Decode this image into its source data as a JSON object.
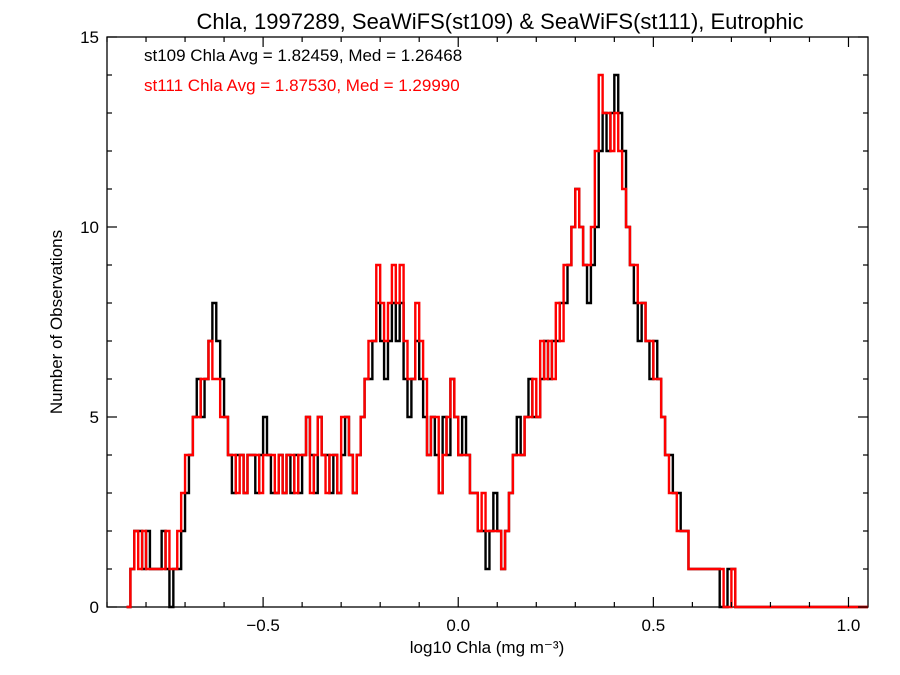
{
  "chart_data": {
    "type": "histogram",
    "title": "Chla, 1997289, SeaWiFS(st109) & SeaWiFS(st111), Eutrophic",
    "xlabel": "log10 Chla (mg m⁻³)",
    "ylabel": "Number of Observations",
    "xlim": [
      -0.9,
      1.05
    ],
    "ylim": [
      0,
      15
    ],
    "xticks": [
      -0.5,
      0.0,
      0.5,
      1.0
    ],
    "xtick_labels": [
      "−0.5",
      "0.0",
      "0.5",
      "1.0"
    ],
    "yticks": [
      0,
      5,
      10,
      15
    ],
    "ytick_labels": [
      "0",
      "5",
      "10",
      "15"
    ],
    "grid": false,
    "bin_start": -0.85,
    "bin_width": 0.01,
    "stats": [
      {
        "text": "st109 Chla Avg = 1.82459, Med = 1.26468",
        "color": "#000000"
      },
      {
        "text": "st111 Chla Avg = 1.87530, Med = 1.29990",
        "color": "#ff0000"
      }
    ],
    "series": [
      {
        "name": "st109",
        "color": "#000000",
        "values": [
          0,
          1,
          2,
          2,
          1,
          2,
          1,
          1,
          1,
          2,
          1,
          0,
          1,
          1,
          2,
          3,
          4,
          5,
          6,
          5,
          6,
          7,
          8,
          7,
          6,
          5,
          4,
          3,
          4,
          4,
          3,
          4,
          4,
          3,
          4,
          5,
          4,
          3,
          3,
          4,
          3,
          4,
          3,
          4,
          3,
          4,
          5,
          4,
          3,
          5,
          4,
          4,
          3,
          4,
          3,
          4,
          5,
          4,
          3,
          4,
          5,
          6,
          6,
          7,
          8,
          7,
          6,
          7,
          8,
          7,
          8,
          6,
          5,
          6,
          7,
          6,
          5,
          4,
          5,
          4,
          3,
          5,
          4,
          6,
          5,
          4,
          5,
          4,
          3,
          3,
          2,
          2,
          1,
          2,
          3,
          2,
          1,
          2,
          3,
          4,
          5,
          4,
          5,
          6,
          5,
          5,
          6,
          7,
          6,
          7,
          7,
          8,
          8,
          9,
          10,
          11,
          10,
          9,
          8,
          9,
          10,
          12,
          13,
          12,
          13,
          14,
          13,
          12,
          10,
          9,
          8,
          7,
          8,
          7,
          6,
          7,
          6,
          5,
          4,
          4,
          3,
          3,
          2,
          2,
          1,
          1,
          1,
          1,
          1,
          1,
          1,
          1,
          0,
          0,
          1,
          1,
          0,
          0,
          0
        ]
      },
      {
        "name": "st111",
        "color": "#ff0000",
        "values": [
          0,
          1,
          2,
          1,
          2,
          1,
          1,
          1,
          1,
          1,
          2,
          1,
          1,
          2,
          3,
          4,
          4,
          5,
          5,
          6,
          6,
          7,
          6,
          6,
          5,
          5,
          4,
          4,
          3,
          4,
          3,
          4,
          4,
          4,
          3,
          4,
          4,
          4,
          3,
          4,
          3,
          4,
          4,
          3,
          4,
          4,
          5,
          3,
          4,
          5,
          4,
          3,
          4,
          4,
          3,
          5,
          5,
          4,
          3,
          4,
          5,
          6,
          7,
          7,
          9,
          8,
          7,
          8,
          9,
          8,
          9,
          7,
          6,
          6,
          8,
          7,
          6,
          4,
          5,
          5,
          3,
          4,
          5,
          6,
          5,
          4,
          4,
          4,
          3,
          3,
          2,
          3,
          2,
          2,
          2,
          2,
          1,
          2,
          3,
          4,
          4,
          4,
          5,
          5,
          6,
          5,
          7,
          6,
          7,
          6,
          8,
          7,
          9,
          9,
          10,
          11,
          10,
          9,
          9,
          10,
          12,
          14,
          13,
          13,
          12,
          13,
          12,
          11,
          10,
          9,
          9,
          8,
          8,
          7,
          7,
          6,
          6,
          5,
          4,
          3,
          3,
          2,
          2,
          2,
          1,
          1,
          1,
          1,
          1,
          1,
          1,
          1,
          1,
          0,
          0,
          1,
          0,
          0,
          0
        ]
      }
    ]
  }
}
